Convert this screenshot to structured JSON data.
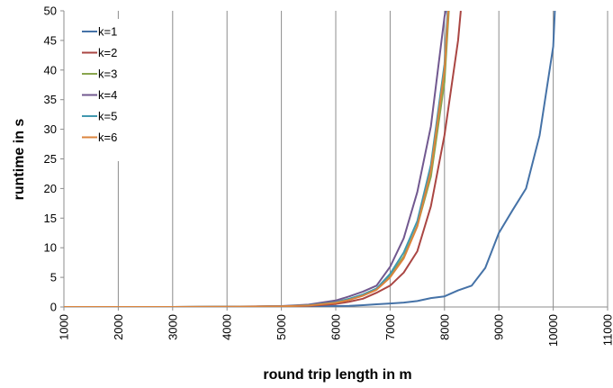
{
  "chart_data": {
    "type": "line",
    "xlabel": "round trip length in m",
    "ylabel": "runtime in s",
    "xlim": [
      1000,
      11000
    ],
    "ylim": [
      0,
      50
    ],
    "x_ticks": [
      1000,
      2000,
      3000,
      4000,
      5000,
      6000,
      7000,
      8000,
      9000,
      10000,
      11000
    ],
    "y_ticks": [
      0,
      5,
      10,
      15,
      20,
      25,
      30,
      35,
      40,
      45,
      50
    ],
    "x_tick_labels": [
      "1000",
      "2000",
      "3000",
      "4000",
      "5000",
      "6000",
      "7000",
      "8000",
      "9000",
      "10000",
      "11000"
    ],
    "y_tick_labels": [
      "0",
      "5",
      "10",
      "15",
      "20",
      "25",
      "30",
      "35",
      "40",
      "45",
      "50"
    ],
    "grid": "vertical",
    "legend_position": "top-left",
    "series": [
      {
        "name": "k=1",
        "color": "#4572A7",
        "x": [
          1000,
          2000,
          3000,
          4000,
          5000,
          5500,
          6000,
          6250,
          6500,
          6750,
          7000,
          7250,
          7500,
          7750,
          8000,
          8250,
          8500,
          8750,
          9000,
          9250,
          9500,
          9750,
          10000,
          10030
        ],
        "y": [
          0,
          0,
          0,
          0,
          0.05,
          0.1,
          0.15,
          0.2,
          0.3,
          0.45,
          0.6,
          0.75,
          1.0,
          1.5,
          1.8,
          2.8,
          3.6,
          6.6,
          12.5,
          16.3,
          20,
          29,
          44,
          50
        ]
      },
      {
        "name": "k=2",
        "color": "#AA4643",
        "x": [
          1000,
          2000,
          3000,
          4000,
          5000,
          5500,
          6000,
          6250,
          6500,
          6750,
          7000,
          7250,
          7500,
          7750,
          8000,
          8250,
          8300
        ],
        "y": [
          0,
          0,
          0,
          0.05,
          0.1,
          0.2,
          0.5,
          0.9,
          1.4,
          2.4,
          3.6,
          5.8,
          9.4,
          17,
          29,
          45,
          50
        ]
      },
      {
        "name": "k=3",
        "color": "#89A54E",
        "x": [
          1000,
          2000,
          3000,
          4000,
          5000,
          5500,
          6000,
          6250,
          6500,
          6750,
          7000,
          7250,
          7500,
          7750,
          8000,
          8080
        ],
        "y": [
          0,
          0,
          0,
          0.05,
          0.1,
          0.3,
          0.8,
          1.4,
          2.1,
          3.1,
          5.3,
          8.5,
          13.7,
          22,
          38,
          50
        ]
      },
      {
        "name": "k=4",
        "color": "#71588F",
        "x": [
          1000,
          2000,
          3000,
          4000,
          5000,
          5500,
          6000,
          6250,
          6500,
          6750,
          7000,
          7250,
          7500,
          7750,
          8000,
          8050
        ],
        "y": [
          0,
          0,
          0,
          0.05,
          0.15,
          0.4,
          1.1,
          1.8,
          2.6,
          3.6,
          6.8,
          11.6,
          19.4,
          30.5,
          49,
          51
        ]
      },
      {
        "name": "k=5",
        "color": "#4198AF",
        "x": [
          1000,
          2000,
          3000,
          4000,
          5000,
          5500,
          6000,
          6250,
          6500,
          6750,
          7000,
          7250,
          7500,
          7750,
          8000,
          8060
        ],
        "y": [
          0,
          0,
          0,
          0.05,
          0.1,
          0.3,
          0.8,
          1.4,
          2.1,
          3.1,
          5.6,
          9.2,
          14.5,
          24,
          41,
          50
        ]
      },
      {
        "name": "k=6",
        "color": "#DB843D",
        "x": [
          1000,
          2000,
          3000,
          4000,
          5000,
          5500,
          6000,
          6250,
          6500,
          6750,
          7000,
          7250,
          7500,
          7750,
          8000,
          8070
        ],
        "y": [
          0,
          0,
          0,
          0.05,
          0.1,
          0.25,
          0.7,
          1.2,
          1.9,
          2.9,
          5.0,
          8.2,
          13.6,
          23,
          40,
          50
        ]
      }
    ]
  }
}
